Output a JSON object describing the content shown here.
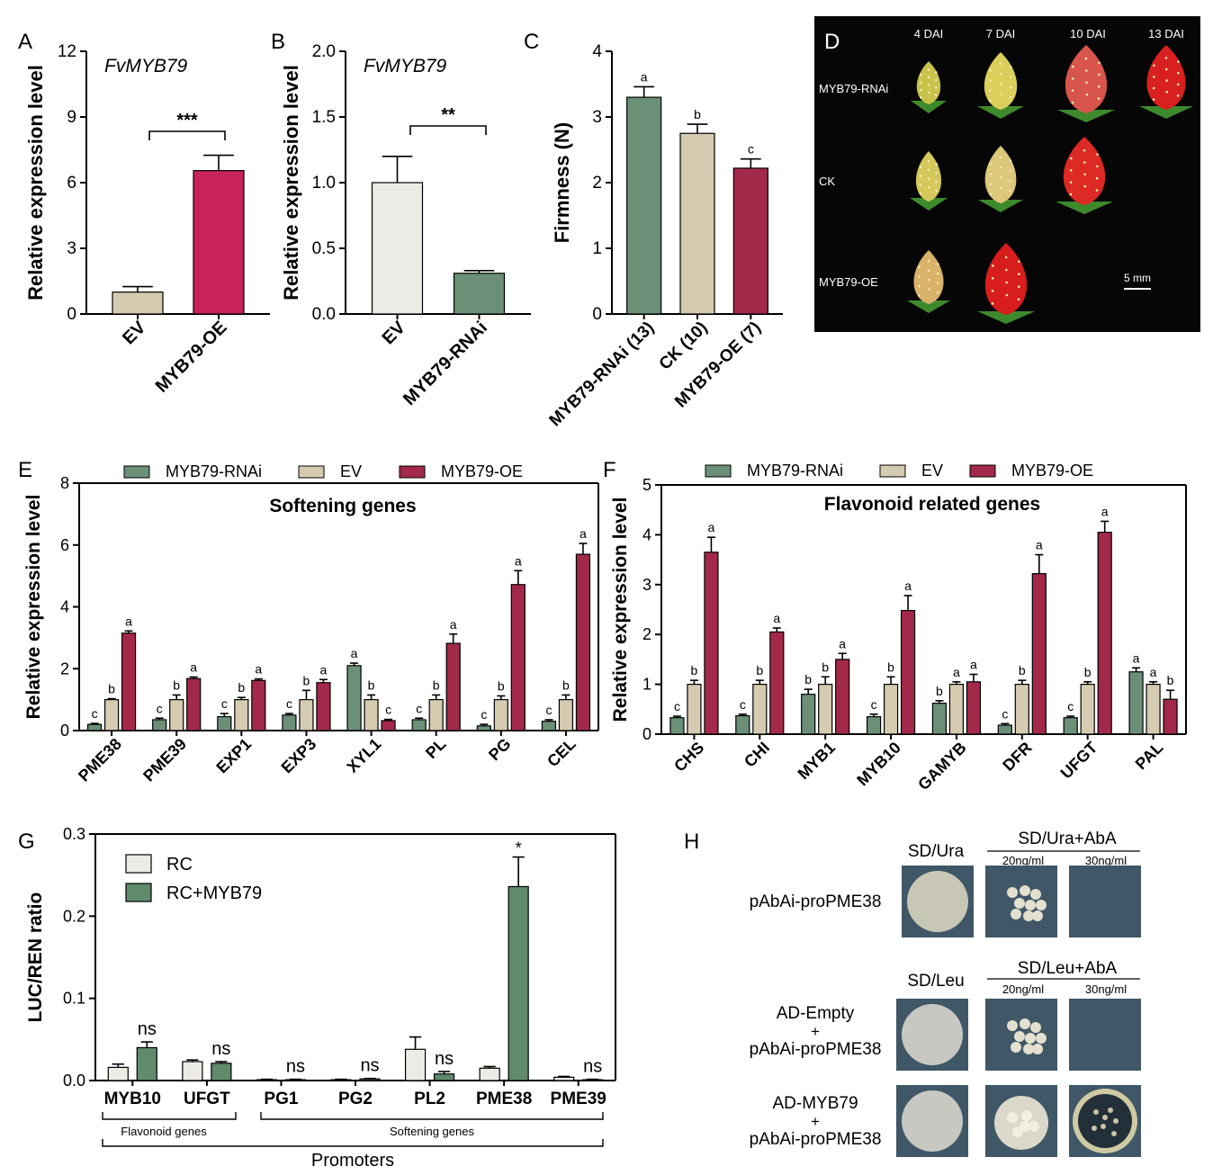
{
  "colors": {
    "rnai": "#6b9077",
    "ev": "#d4cbb1",
    "oe": "#a3294b",
    "oe_bright": "#c9245a",
    "rc": "#ecebe6",
    "rc_myb79": "#5f8a6c"
  },
  "chart_data": [
    {
      "panel": "A",
      "type": "bar",
      "title": "FvMYB79",
      "ylabel": "Relative expression level",
      "ylim": [
        0,
        12
      ],
      "yticks": [
        "0",
        "3",
        "6",
        "9",
        "12"
      ],
      "categories": [
        "EV",
        "MYB79-OE"
      ],
      "values": [
        1.0,
        6.55
      ],
      "errors": [
        0.25,
        0.7
      ],
      "significance": "***"
    },
    {
      "panel": "B",
      "type": "bar",
      "title": "FvMYB79",
      "ylabel": "Relative expression level",
      "ylim": [
        0,
        2.0
      ],
      "yticks": [
        "0.0",
        "0.5",
        "1.0",
        "1.5",
        "2.0"
      ],
      "categories": [
        "EV",
        "MYB79-RNAi"
      ],
      "values": [
        1.0,
        0.31
      ],
      "errors": [
        0.2,
        0.02
      ],
      "significance": "**"
    },
    {
      "panel": "C",
      "type": "bar",
      "ylabel": "Firmness (N)",
      "ylim": [
        0,
        4
      ],
      "yticks": [
        "0",
        "1",
        "2",
        "3",
        "4"
      ],
      "categories": [
        "MYB79-RNAi (13)",
        "CK (10)",
        "MYB79-OE (7)"
      ],
      "values": [
        3.3,
        2.75,
        2.22
      ],
      "errors": [
        0.16,
        0.14,
        0.14
      ],
      "letters": [
        "a",
        "b",
        "c"
      ]
    },
    {
      "panel": "E",
      "type": "bar",
      "title": "Softening genes",
      "ylabel": "Relative expression level",
      "ylim": [
        0,
        8
      ],
      "yticks": [
        "0",
        "2",
        "4",
        "6",
        "8"
      ],
      "categories": [
        "PME38",
        "PME39",
        "EXP1",
        "EXP3",
        "XYL1",
        "PL",
        "PG",
        "CEL"
      ],
      "series": [
        {
          "name": "MYB79-RNAi",
          "values": [
            0.2,
            0.35,
            0.45,
            0.5,
            2.1,
            0.35,
            0.15,
            0.3
          ],
          "errors": [
            0.03,
            0.05,
            0.1,
            0.05,
            0.08,
            0.05,
            0.05,
            0.05
          ],
          "letters": [
            "c",
            "c",
            "c",
            "c",
            "a",
            "c",
            "c",
            "c"
          ]
        },
        {
          "name": "EV",
          "values": [
            1.0,
            1.0,
            1.0,
            1.0,
            1.0,
            1.0,
            1.0,
            1.0
          ],
          "errors": [
            0.03,
            0.15,
            0.07,
            0.3,
            0.15,
            0.15,
            0.12,
            0.15
          ],
          "letters": [
            "b",
            "b",
            "b",
            "b",
            "b",
            "b",
            "b",
            "b"
          ]
        },
        {
          "name": "MYB79-OE",
          "values": [
            3.15,
            1.68,
            1.62,
            1.55,
            0.32,
            2.82,
            4.72,
            5.7
          ],
          "errors": [
            0.07,
            0.05,
            0.05,
            0.1,
            0.04,
            0.3,
            0.45,
            0.35
          ],
          "letters": [
            "a",
            "a",
            "a",
            "a",
            "c",
            "a",
            "a",
            "a"
          ]
        }
      ]
    },
    {
      "panel": "F",
      "type": "bar",
      "title": "Flavonoid related genes",
      "ylabel": "Relative expression level",
      "ylim": [
        0,
        5
      ],
      "yticks": [
        "0",
        "1",
        "2",
        "3",
        "4",
        "5"
      ],
      "categories": [
        "CHS",
        "CHI",
        "MYB1",
        "MYB10",
        "GAMYB",
        "DFR",
        "UFGT",
        "PAL"
      ],
      "series": [
        {
          "name": "MYB79-RNAi",
          "values": [
            0.33,
            0.37,
            0.8,
            0.35,
            0.62,
            0.18,
            0.33,
            1.25
          ],
          "errors": [
            0.03,
            0.03,
            0.1,
            0.05,
            0.05,
            0.03,
            0.03,
            0.08
          ],
          "letters": [
            "c",
            "c",
            "b",
            "c",
            "b",
            "c",
            "c",
            "a"
          ]
        },
        {
          "name": "EV",
          "values": [
            1.0,
            1.0,
            1.0,
            1.0,
            1.0,
            1.0,
            1.0,
            1.0
          ],
          "errors": [
            0.08,
            0.08,
            0.15,
            0.15,
            0.05,
            0.08,
            0.05,
            0.05
          ],
          "letters": [
            "b",
            "b",
            "b",
            "b",
            "a",
            "b",
            "b",
            "a"
          ]
        },
        {
          "name": "MYB79-OE",
          "values": [
            3.65,
            2.05,
            1.5,
            2.48,
            1.05,
            3.22,
            4.05,
            0.7
          ],
          "errors": [
            0.3,
            0.08,
            0.12,
            0.3,
            0.15,
            0.38,
            0.22,
            0.18
          ],
          "letters": [
            "a",
            "a",
            "a",
            "a",
            "a",
            "a",
            "a",
            "b"
          ]
        }
      ]
    },
    {
      "panel": "G",
      "type": "bar",
      "ylabel": "LUC/REN ratio",
      "ylim": [
        0,
        0.3
      ],
      "yticks": [
        "0.0",
        "0.1",
        "0.2",
        "0.3"
      ],
      "categories": [
        "MYB10",
        "UFGT",
        "PG1",
        "PG2",
        "PL2",
        "PME38",
        "PME39"
      ],
      "series": [
        {
          "name": "RC",
          "values": [
            0.016,
            0.023,
            0.001,
            0.001,
            0.038,
            0.015,
            0.004
          ],
          "errors": [
            0.004,
            0.002,
            0.0005,
            0.0005,
            0.015,
            0.002,
            0.001
          ]
        },
        {
          "name": "RC+MYB79",
          "values": [
            0.04,
            0.021,
            0.001,
            0.002,
            0.008,
            0.236,
            0.001
          ],
          "errors": [
            0.007,
            0.002,
            0.0005,
            0.0005,
            0.003,
            0.036,
            0.0005
          ]
        }
      ],
      "significance": [
        "ns",
        "ns",
        "ns",
        "ns",
        "ns",
        "*",
        "ns"
      ],
      "group_labels": [
        "Flavonoid genes",
        "Softening genes"
      ],
      "xlabel": "Promoters"
    }
  ],
  "panel_letters": [
    "A",
    "B",
    "C",
    "D",
    "E",
    "F",
    "G",
    "H"
  ],
  "photo_d": {
    "columns": [
      "4 DAI",
      "7 DAI",
      "10 DAI",
      "13 DAI"
    ],
    "rows": [
      "MYB79-RNAi",
      "CK",
      "MYB79-OE"
    ],
    "scale": "5 mm"
  },
  "yeast_h": {
    "block1": {
      "control": "SD/Ura",
      "treatment": "SD/Ura+AbA",
      "conc": [
        "20ng/ml",
        "30ng/ml"
      ],
      "rows": [
        [
          "pAbAi-proPME38"
        ]
      ]
    },
    "block2": {
      "control": "SD/Leu",
      "treatment": "SD/Leu+AbA",
      "conc": [
        "20ng/ml",
        "30ng/ml"
      ],
      "rows": [
        [
          "AD-Empty",
          "+",
          "pAbAi-proPME38"
        ],
        [
          "AD-MYB79",
          "+",
          "pAbAi-proPME38"
        ]
      ]
    }
  }
}
